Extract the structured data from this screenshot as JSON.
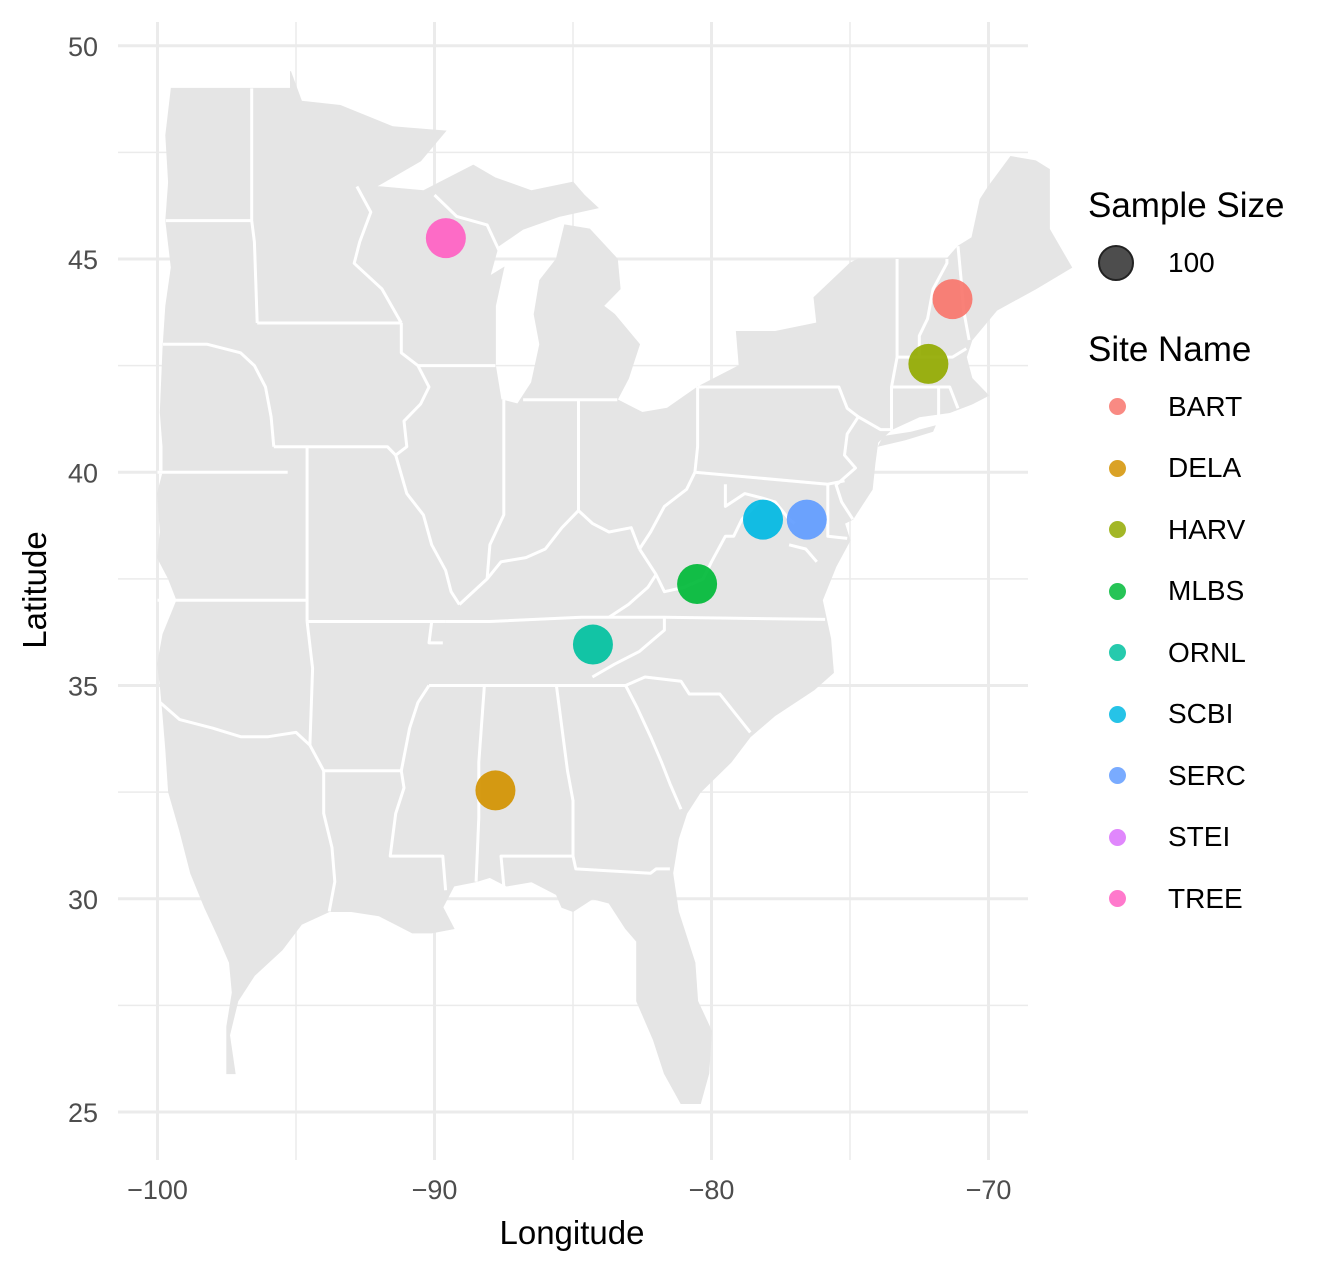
{
  "map": {
    "x_axis": {
      "label": "Longitude",
      "range": [
        -101.5,
        -68.5
      ],
      "ticks": [
        -100,
        -90,
        -80,
        -70
      ],
      "tick_labels": [
        "−100",
        "−90",
        "−80",
        "−70"
      ],
      "minor": [
        -95,
        -85,
        -75
      ]
    },
    "y_axis": {
      "label": "Latitude",
      "range": [
        24,
        51
      ],
      "ticks": [
        25,
        30,
        35,
        40,
        45,
        50
      ],
      "tick_labels": [
        "25",
        "30",
        "35",
        "40",
        "45",
        "50"
      ],
      "minor": [
        27.5,
        32.5,
        37.5,
        42.5,
        47.5
      ]
    },
    "grid": true,
    "land_color": "#e5e5e5",
    "border_color": "#ffffff",
    "point_size_value": "100"
  },
  "legend": {
    "size_title": "Sample Size",
    "size_value": "100",
    "color_title": "Site Name",
    "placement": "right"
  },
  "sites": [
    {
      "name": "BART",
      "lon": -71.3,
      "lat": 44.06,
      "color": "#F8766D",
      "shown": true
    },
    {
      "name": "DELA",
      "lon": -87.8,
      "lat": 32.54,
      "color": "#D39200",
      "shown": true
    },
    {
      "name": "HARV",
      "lon": -72.17,
      "lat": 42.54,
      "color": "#93AA00",
      "shown": true
    },
    {
      "name": "MLBS",
      "lon": -80.52,
      "lat": 37.38,
      "color": "#00BA38",
      "shown": true
    },
    {
      "name": "ORNL",
      "lon": -84.28,
      "lat": 35.96,
      "color": "#00C19F",
      "shown": true
    },
    {
      "name": "SCBI",
      "lon": -78.14,
      "lat": 38.89,
      "color": "#00B9E3",
      "shown": true
    },
    {
      "name": "SERC",
      "lon": -76.56,
      "lat": 38.89,
      "color": "#619CFF",
      "shown": true
    },
    {
      "name": "STEI",
      "lon": -89.59,
      "lat": 45.51,
      "color": "#DB72FB",
      "shown": false
    },
    {
      "name": "TREE",
      "lon": -89.59,
      "lat": 45.49,
      "color": "#FF61C3",
      "shown": true
    }
  ]
}
